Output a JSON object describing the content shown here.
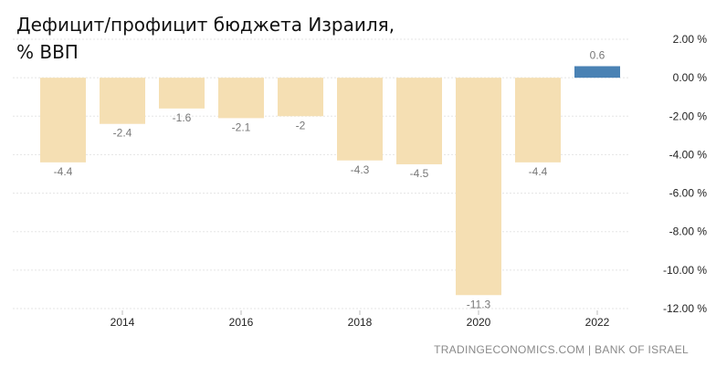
{
  "chart_data": {
    "type": "bar",
    "title_lines": [
      "Дефицит/профицит бюджета Израиля,",
      "% ВВП"
    ],
    "categories": [
      "2013",
      "2014",
      "2015",
      "2016",
      "2017",
      "2018",
      "2019",
      "2020",
      "2021",
      "2022"
    ],
    "values": [
      -4.4,
      -2.4,
      -1.6,
      -2.1,
      -2.0,
      -4.3,
      -4.5,
      -11.3,
      -4.4,
      0.6
    ],
    "data_labels": [
      "-4.4",
      "-2.4",
      "-1.6",
      "-2.1",
      "-2",
      "-4.3",
      "-4.5",
      "-11.3",
      "-4.4",
      "0.6"
    ],
    "x_tick_labels": [
      "2014",
      "2016",
      "2018",
      "2020",
      "2022"
    ],
    "y_ticks": [
      2,
      0,
      -2,
      -4,
      -6,
      -8,
      -10,
      -12
    ],
    "y_tick_labels": [
      "2.00 %",
      "0.00 %",
      "-2.00 %",
      "-4.00 %",
      "-6.00 %",
      "-8.00 %",
      "-10.00 %",
      "-12.00 %"
    ],
    "ylim": [
      -12,
      2
    ],
    "y_axis_position": "right",
    "grid": true,
    "colors": {
      "negative": "#f5dfb3",
      "positive": "#4a82b4",
      "grid": "#e5e5e5",
      "label": "#777777"
    }
  },
  "footer": "TRADINGECONOMICS.COM | BANK OF ISRAEL"
}
